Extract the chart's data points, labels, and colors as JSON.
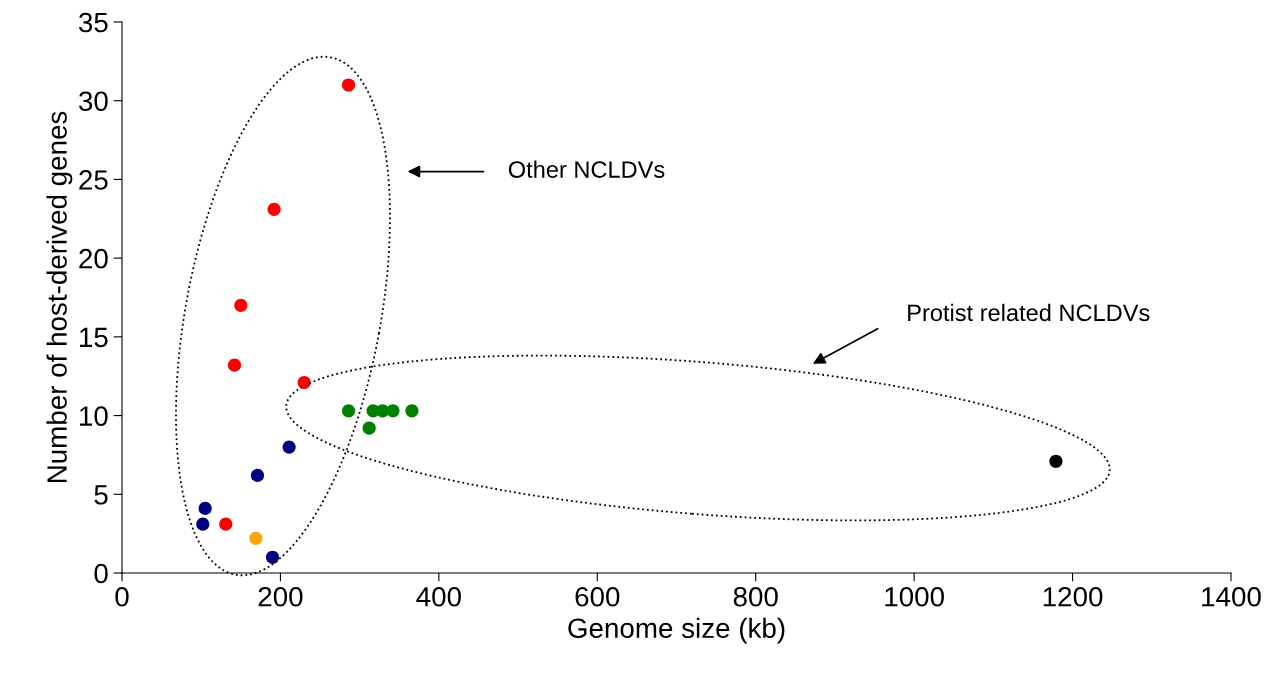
{
  "chart_data": {
    "type": "scatter",
    "xlabel": "Genome size (kb)",
    "ylabel": "Number of host-derived genes",
    "annotations": [
      "Other NCLDVs",
      "Protist related NCLDVs"
    ],
    "series": [
      {
        "color": "#ff0000",
        "x": [
          286,
          192,
          150,
          142,
          230,
          131
        ],
        "values": [
          31.0,
          23.1,
          17.0,
          13.2,
          12.1,
          3.1
        ]
      },
      {
        "color": "#000080",
        "x": [
          105,
          102,
          171,
          211,
          190
        ],
        "values": [
          4.1,
          3.1,
          6.2,
          8.0,
          1.0
        ]
      },
      {
        "color": "#ffa500",
        "x": [
          169
        ],
        "values": [
          2.2
        ]
      },
      {
        "color": "#008000",
        "x": [
          286,
          317,
          329,
          342,
          366,
          312
        ],
        "values": [
          10.3,
          10.3,
          10.3,
          10.3,
          10.3,
          9.2
        ]
      },
      {
        "color": "#000000",
        "x": [
          1179
        ],
        "values": [
          7.1
        ]
      }
    ],
    "xlim": [
      0,
      1400
    ],
    "ylim": [
      0,
      35
    ],
    "xticks": [
      0,
      200,
      400,
      600,
      800,
      1000,
      1200,
      1400
    ],
    "yticks": [
      0,
      5,
      10,
      15,
      20,
      25,
      30,
      35
    ],
    "grid": false,
    "legend": false,
    "marker": "circle"
  }
}
